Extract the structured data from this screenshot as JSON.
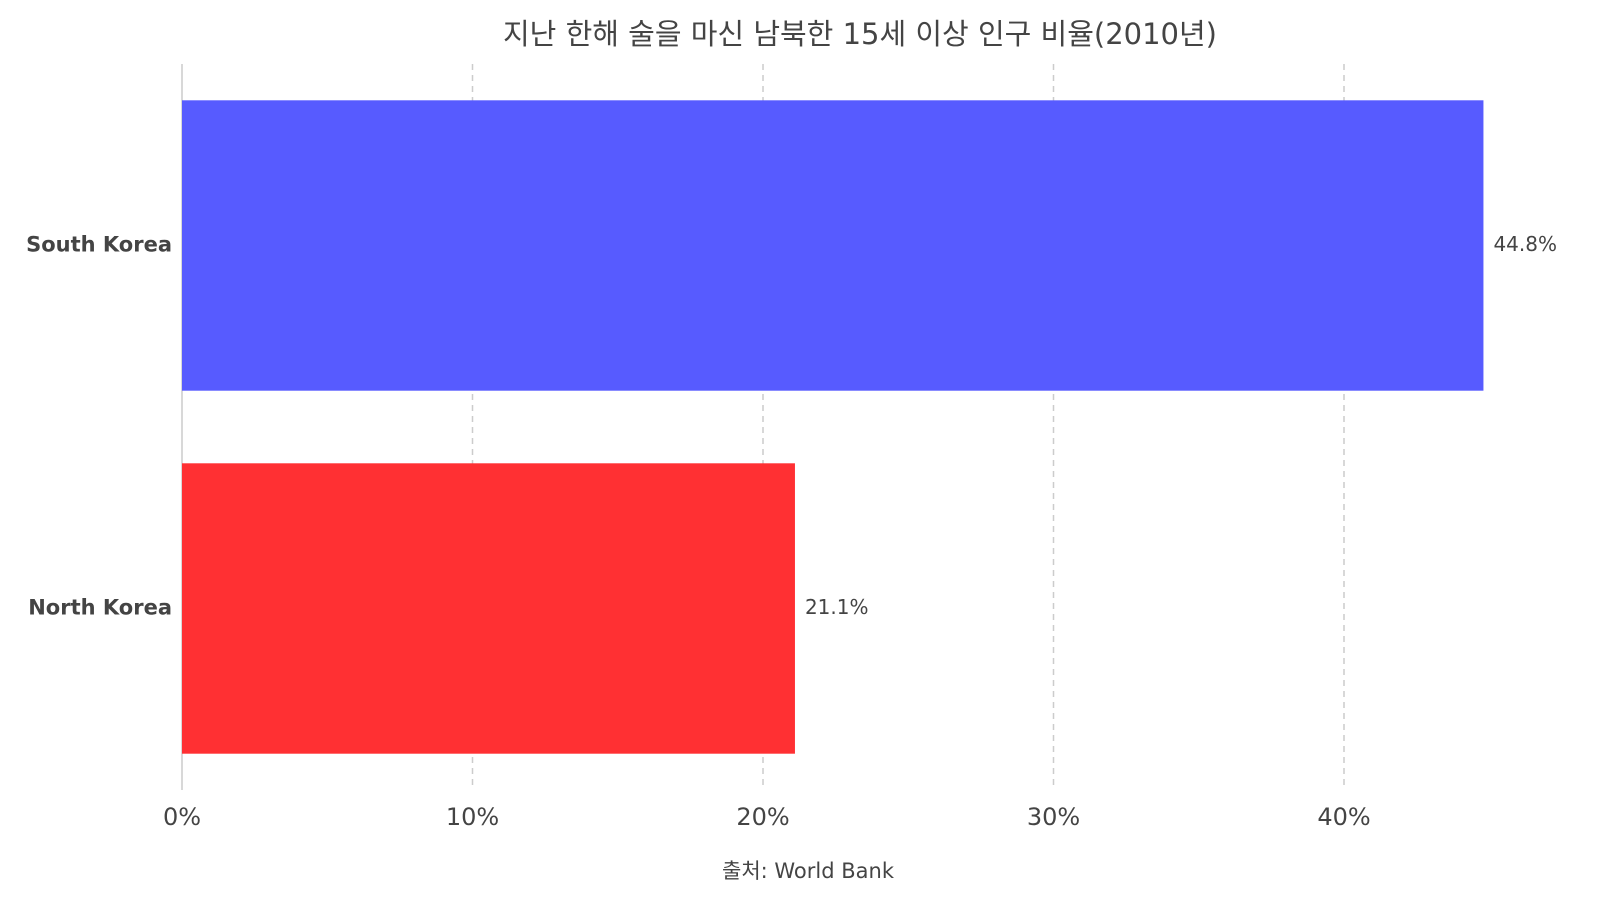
{
  "chart_data": {
    "type": "hbar",
    "title": "지난 한해 술을 마신 남북한 15세 이상 인구 비율(2010년)",
    "categories": [
      "South Korea",
      "North Korea"
    ],
    "values": [
      44.8,
      21.1
    ],
    "value_labels": [
      "44.8%",
      "21.1%"
    ],
    "colors": [
      "#575bff",
      "#ff3033"
    ],
    "xlim": [
      0,
      45
    ],
    "xticks": [
      {
        "value": 0,
        "label": "0%"
      },
      {
        "value": 10,
        "label": "10%"
      },
      {
        "value": 20,
        "label": "20%"
      },
      {
        "value": 30,
        "label": "30%"
      },
      {
        "value": 40,
        "label": "40%"
      }
    ],
    "grid": true,
    "source": "출처: World Bank"
  }
}
